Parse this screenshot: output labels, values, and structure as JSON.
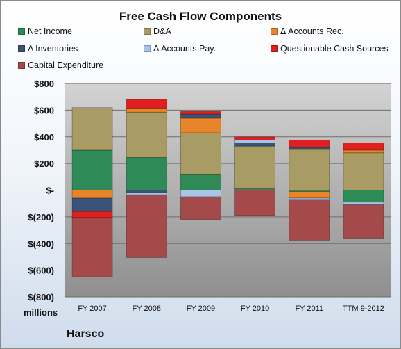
{
  "chart_data": {
    "type": "bar",
    "stacked": true,
    "title": "Free Cash Flow Components",
    "ylabel": "millions",
    "categories": [
      "FY 2007",
      "FY 2008",
      "FY 2009",
      "FY 2010",
      "FY 2011",
      "TTM 9-2012"
    ],
    "ylim": [
      -800,
      800
    ],
    "yticks": [
      800,
      600,
      400,
      200,
      0,
      -200,
      -400,
      -600,
      -800
    ],
    "ytick_labels": [
      "$800",
      "$600",
      "$400",
      "$200",
      "$-",
      "$(200)",
      "$(400)",
      "$(600)",
      "$(800)"
    ],
    "grid": true,
    "legend_position": "top",
    "series": [
      {
        "name": "Net Income",
        "color": "#2e8b57",
        "values": [
          300,
          245,
          120,
          10,
          -10,
          -90
        ]
      },
      {
        "name": "D&A",
        "color": "#a89b64",
        "values": [
          315,
          340,
          310,
          320,
          305,
          280
        ]
      },
      {
        "name": "Δ Accounts Rec.",
        "color": "#e8842a",
        "values": [
          -60,
          25,
          110,
          0,
          -50,
          20
        ]
      },
      {
        "name": "Δ Inventories",
        "color": "#3a5478",
        "values": [
          -100,
          -20,
          30,
          20,
          15,
          0
        ]
      },
      {
        "name": "Δ Accounts Pay.",
        "color": "#a8c4e8",
        "values": [
          5,
          -15,
          -50,
          25,
          -10,
          -20
        ]
      },
      {
        "name": "Questionable Cash Sources",
        "color": "#e02020",
        "values": [
          -45,
          70,
          20,
          25,
          55,
          55
        ]
      },
      {
        "name": "Capital Expenditure",
        "color": "#a44a4a",
        "values": [
          -445,
          -470,
          -170,
          -190,
          -305,
          -255
        ]
      }
    ]
  },
  "company": "Harsco"
}
